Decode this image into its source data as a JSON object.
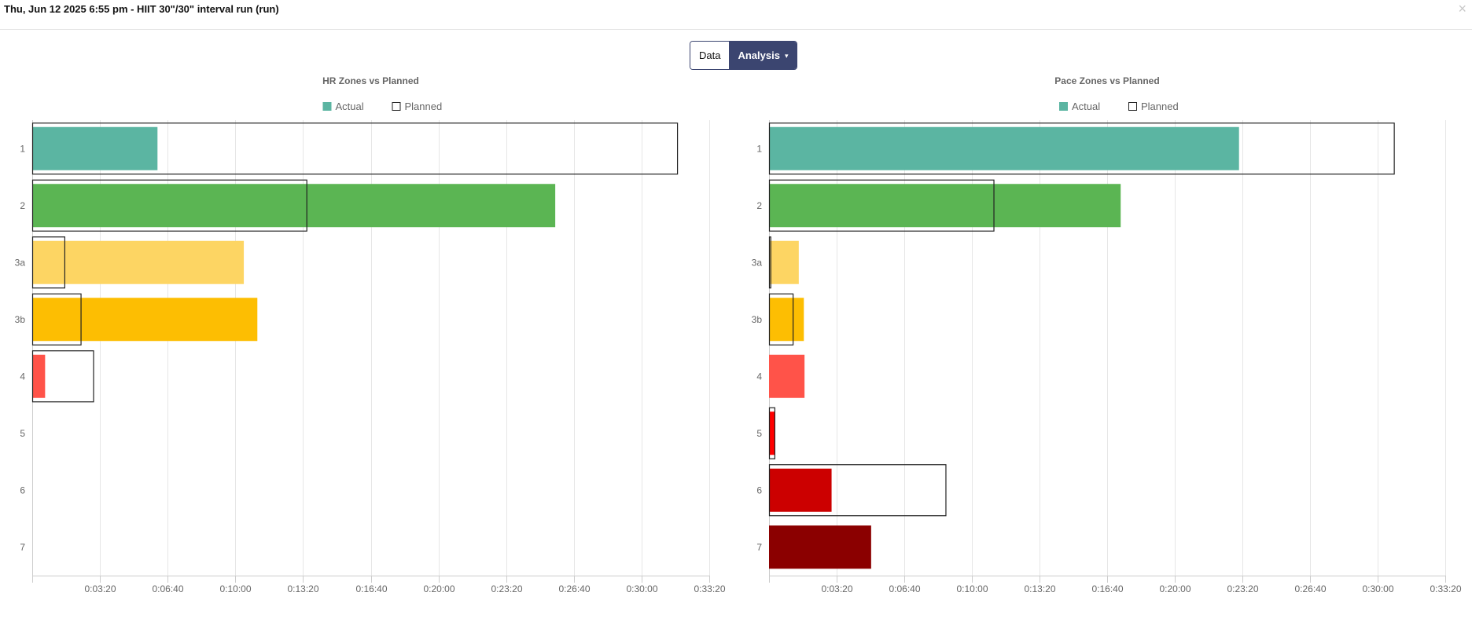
{
  "header": {
    "title": "Thu, Jun 12 2025 6:55 pm - HIIT 30\"/30\" interval run (run)",
    "close_icon": "close-icon",
    "close_symbol": "×"
  },
  "toggle": {
    "data_label": "Data",
    "analysis_label": "Analysis",
    "caret": "▾",
    "active": "Analysis"
  },
  "chart_data": [
    {
      "type": "bar",
      "orientation": "horizontal",
      "title": "HR Zones vs Planned",
      "legend": {
        "position": "top-center",
        "entries": [
          "Actual",
          "Planned"
        ]
      },
      "categories": [
        "1",
        "2",
        "3a",
        "3b",
        "4",
        "5",
        "6",
        "7"
      ],
      "colors": [
        "#5bb5a2",
        "#5bb553",
        "#fdd563",
        "#fdbe02",
        "#ff5349",
        "#ff0000",
        "#cc0000",
        "#8b0000"
      ],
      "series": [
        {
          "name": "Actual",
          "values": [
            370,
            1545,
            625,
            665,
            38,
            0,
            0,
            0
          ]
        },
        {
          "name": "Planned",
          "values": [
            1905,
            810,
            95,
            143,
            180,
            0,
            0,
            0
          ]
        }
      ],
      "xaxis": {
        "format": "time",
        "ticks": [
          200,
          400,
          600,
          800,
          1000,
          1200,
          1400,
          1600,
          1800,
          2000
        ],
        "tick_labels": [
          "0:03:20",
          "0:06:40",
          "0:10:00",
          "0:13:20",
          "0:16:40",
          "0:20:00",
          "0:23:20",
          "0:26:40",
          "0:30:00",
          "0:33:20"
        ]
      },
      "xlim": [
        0,
        2000
      ],
      "grid": true
    },
    {
      "type": "bar",
      "orientation": "horizontal",
      "title": "Pace Zones vs Planned",
      "legend": {
        "position": "top-center",
        "entries": [
          "Actual",
          "Planned"
        ]
      },
      "categories": [
        "1",
        "2",
        "3a",
        "3b",
        "4",
        "5",
        "6",
        "7"
      ],
      "colors": [
        "#5bb5a2",
        "#5bb553",
        "#fdd563",
        "#fdbe02",
        "#ff5349",
        "#ff0000",
        "#cc0000",
        "#8b0000"
      ],
      "series": [
        {
          "name": "Actual",
          "values": [
            1390,
            1040,
            88,
            103,
            105,
            18,
            185,
            302
          ]
        },
        {
          "name": "Planned",
          "values": [
            1848,
            664,
            4,
            70,
            0,
            16,
            522,
            0
          ]
        }
      ],
      "xaxis": {
        "format": "time",
        "ticks": [
          200,
          400,
          600,
          800,
          1000,
          1200,
          1400,
          1600,
          1800,
          2000
        ],
        "tick_labels": [
          "0:03:20",
          "0:06:40",
          "0:10:00",
          "0:13:20",
          "0:16:40",
          "0:20:00",
          "0:23:20",
          "0:26:40",
          "0:30:00",
          "0:33:20"
        ]
      },
      "xlim": [
        0,
        2000
      ],
      "grid": true
    }
  ]
}
